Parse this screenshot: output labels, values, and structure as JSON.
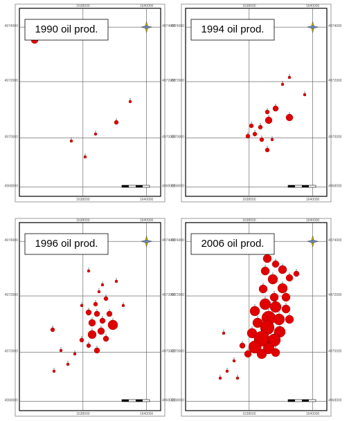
{
  "panels": [
    {
      "title": "1990 oil prod.",
      "y_labels": [
        "4974000",
        "4972000",
        "4970000",
        "4968000"
      ],
      "x_labels": [
        "1638000",
        "1640000"
      ]
    },
    {
      "title": "1994 oil prod.",
      "y_labels": [
        "4974000",
        "4972000",
        "4970000",
        "4968000"
      ],
      "x_labels": [
        "1638000",
        "1640000"
      ]
    },
    {
      "title": "1996 oil prod.",
      "y_labels": [
        "4974000",
        "4972000",
        "4970000",
        "4968000"
      ],
      "x_labels": [
        "1638000",
        "1640000"
      ]
    },
    {
      "title": "2006 oil prod.",
      "y_labels": [
        "4974000",
        "4972000",
        "4970000",
        "4968000"
      ],
      "x_labels": [
        "1638000",
        "1640000"
      ]
    }
  ]
}
